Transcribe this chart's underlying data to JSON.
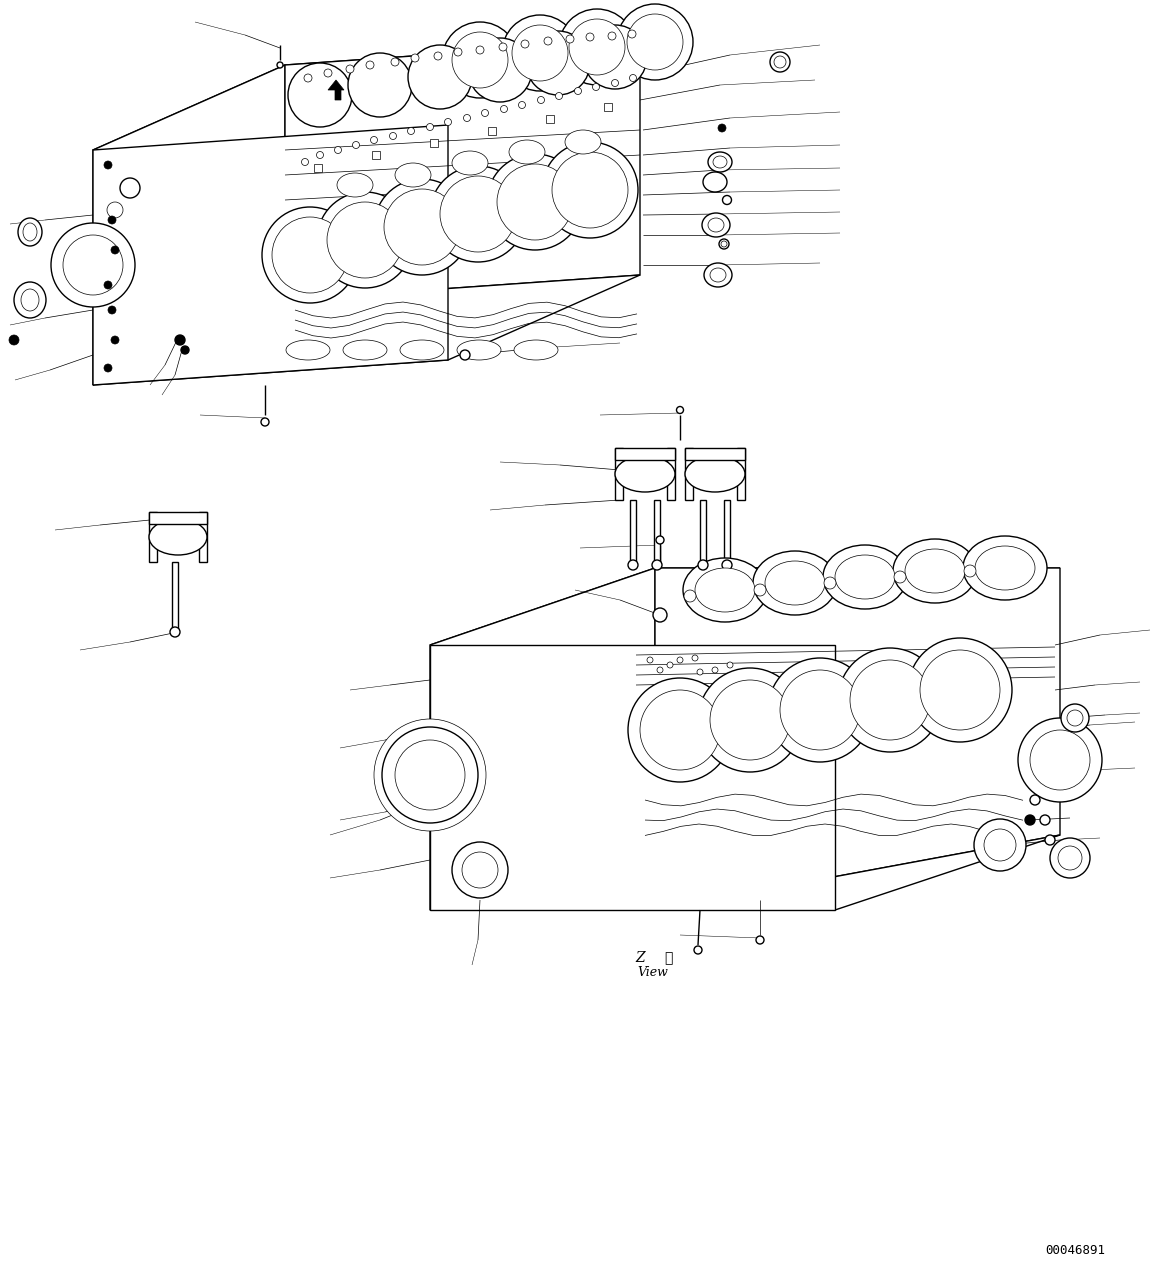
{
  "background_color": "#ffffff",
  "line_color": "#000000",
  "part_number": "00046891",
  "view_z": "Z",
  "view_kanji": "視",
  "view_english": "View",
  "fig_width": 11.63,
  "fig_height": 12.86,
  "lw_main": 1.0,
  "lw_thin": 0.5,
  "lw_hair": 0.35
}
